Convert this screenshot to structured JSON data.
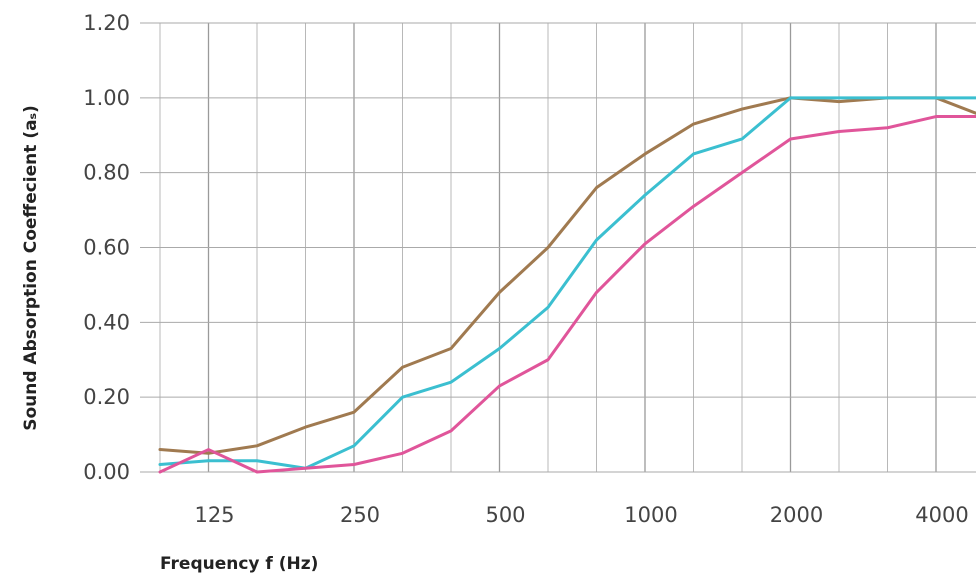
{
  "chart_data": {
    "type": "line",
    "xlabel": "Frequency f (Hz)",
    "ylabel": "Sound Absorption Coeffecient (aₛ)",
    "ylim": [
      0,
      1.2
    ],
    "yticks": [
      "0.00",
      "0.20",
      "0.40",
      "0.60",
      "0.80",
      "1.00",
      "1.20"
    ],
    "x_positions": [
      "100",
      "125",
      "160",
      "200",
      "250",
      "315",
      "400",
      "500",
      "630",
      "800",
      "1000",
      "1250",
      "1600",
      "2000",
      "2500",
      "3150",
      "4000",
      "5000"
    ],
    "xtick_labels": [
      {
        "index": 1,
        "label": "125"
      },
      {
        "index": 4,
        "label": "250"
      },
      {
        "index": 7,
        "label": "500"
      },
      {
        "index": 10,
        "label": "1000"
      },
      {
        "index": 13,
        "label": "2000"
      },
      {
        "index": 16,
        "label": "4000"
      }
    ],
    "grid": true,
    "series": [
      {
        "color": "#a07a50",
        "values": [
          0.06,
          0.05,
          0.07,
          0.12,
          0.16,
          0.28,
          0.33,
          0.48,
          0.6,
          0.76,
          0.85,
          0.93,
          0.97,
          1.0,
          0.99,
          1.0,
          1.0,
          0.95
        ]
      },
      {
        "color": "#3bbfd0",
        "values": [
          0.02,
          0.03,
          0.03,
          0.01,
          0.07,
          0.2,
          0.24,
          0.33,
          0.44,
          0.62,
          0.74,
          0.85,
          0.89,
          1.0,
          1.0,
          1.0,
          1.0,
          1.0
        ]
      },
      {
        "color": "#e0559a",
        "values": [
          0.0,
          0.06,
          0.0,
          0.01,
          0.02,
          0.05,
          0.11,
          0.23,
          0.3,
          0.48,
          0.61,
          0.71,
          0.8,
          0.89,
          0.91,
          0.92,
          0.95,
          0.95
        ]
      }
    ]
  }
}
